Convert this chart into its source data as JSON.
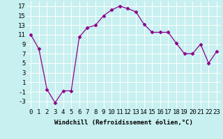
{
  "x": [
    0,
    1,
    2,
    3,
    4,
    5,
    6,
    7,
    8,
    9,
    10,
    11,
    12,
    13,
    14,
    15,
    16,
    17,
    18,
    19,
    20,
    21,
    22,
    23
  ],
  "y": [
    11,
    8,
    -0.5,
    -3.3,
    -0.8,
    -0.8,
    10.5,
    12.5,
    13,
    15,
    16.2,
    17,
    16.5,
    15.8,
    13.2,
    11.5,
    11.5,
    11.5,
    9.2,
    7,
    7,
    9,
    5,
    7.5
  ],
  "line_color": "#8B008B",
  "marker": "D",
  "marker_size": 2.5,
  "bg_color": "#c8f0f0",
  "grid_color": "#ffffff",
  "xlabel": "Windchill (Refroidissement éolien,°C)",
  "xlabel_fontsize": 6.5,
  "tick_fontsize": 6.5,
  "xlim": [
    -0.5,
    23.5
  ],
  "ylim": [
    -4.5,
    18
  ],
  "yticks": [
    -3,
    -1,
    1,
    3,
    5,
    7,
    9,
    11,
    13,
    15,
    17
  ],
  "xticks": [
    0,
    1,
    2,
    3,
    4,
    5,
    6,
    7,
    8,
    9,
    10,
    11,
    12,
    13,
    14,
    15,
    16,
    17,
    18,
    19,
    20,
    21,
    22,
    23
  ]
}
